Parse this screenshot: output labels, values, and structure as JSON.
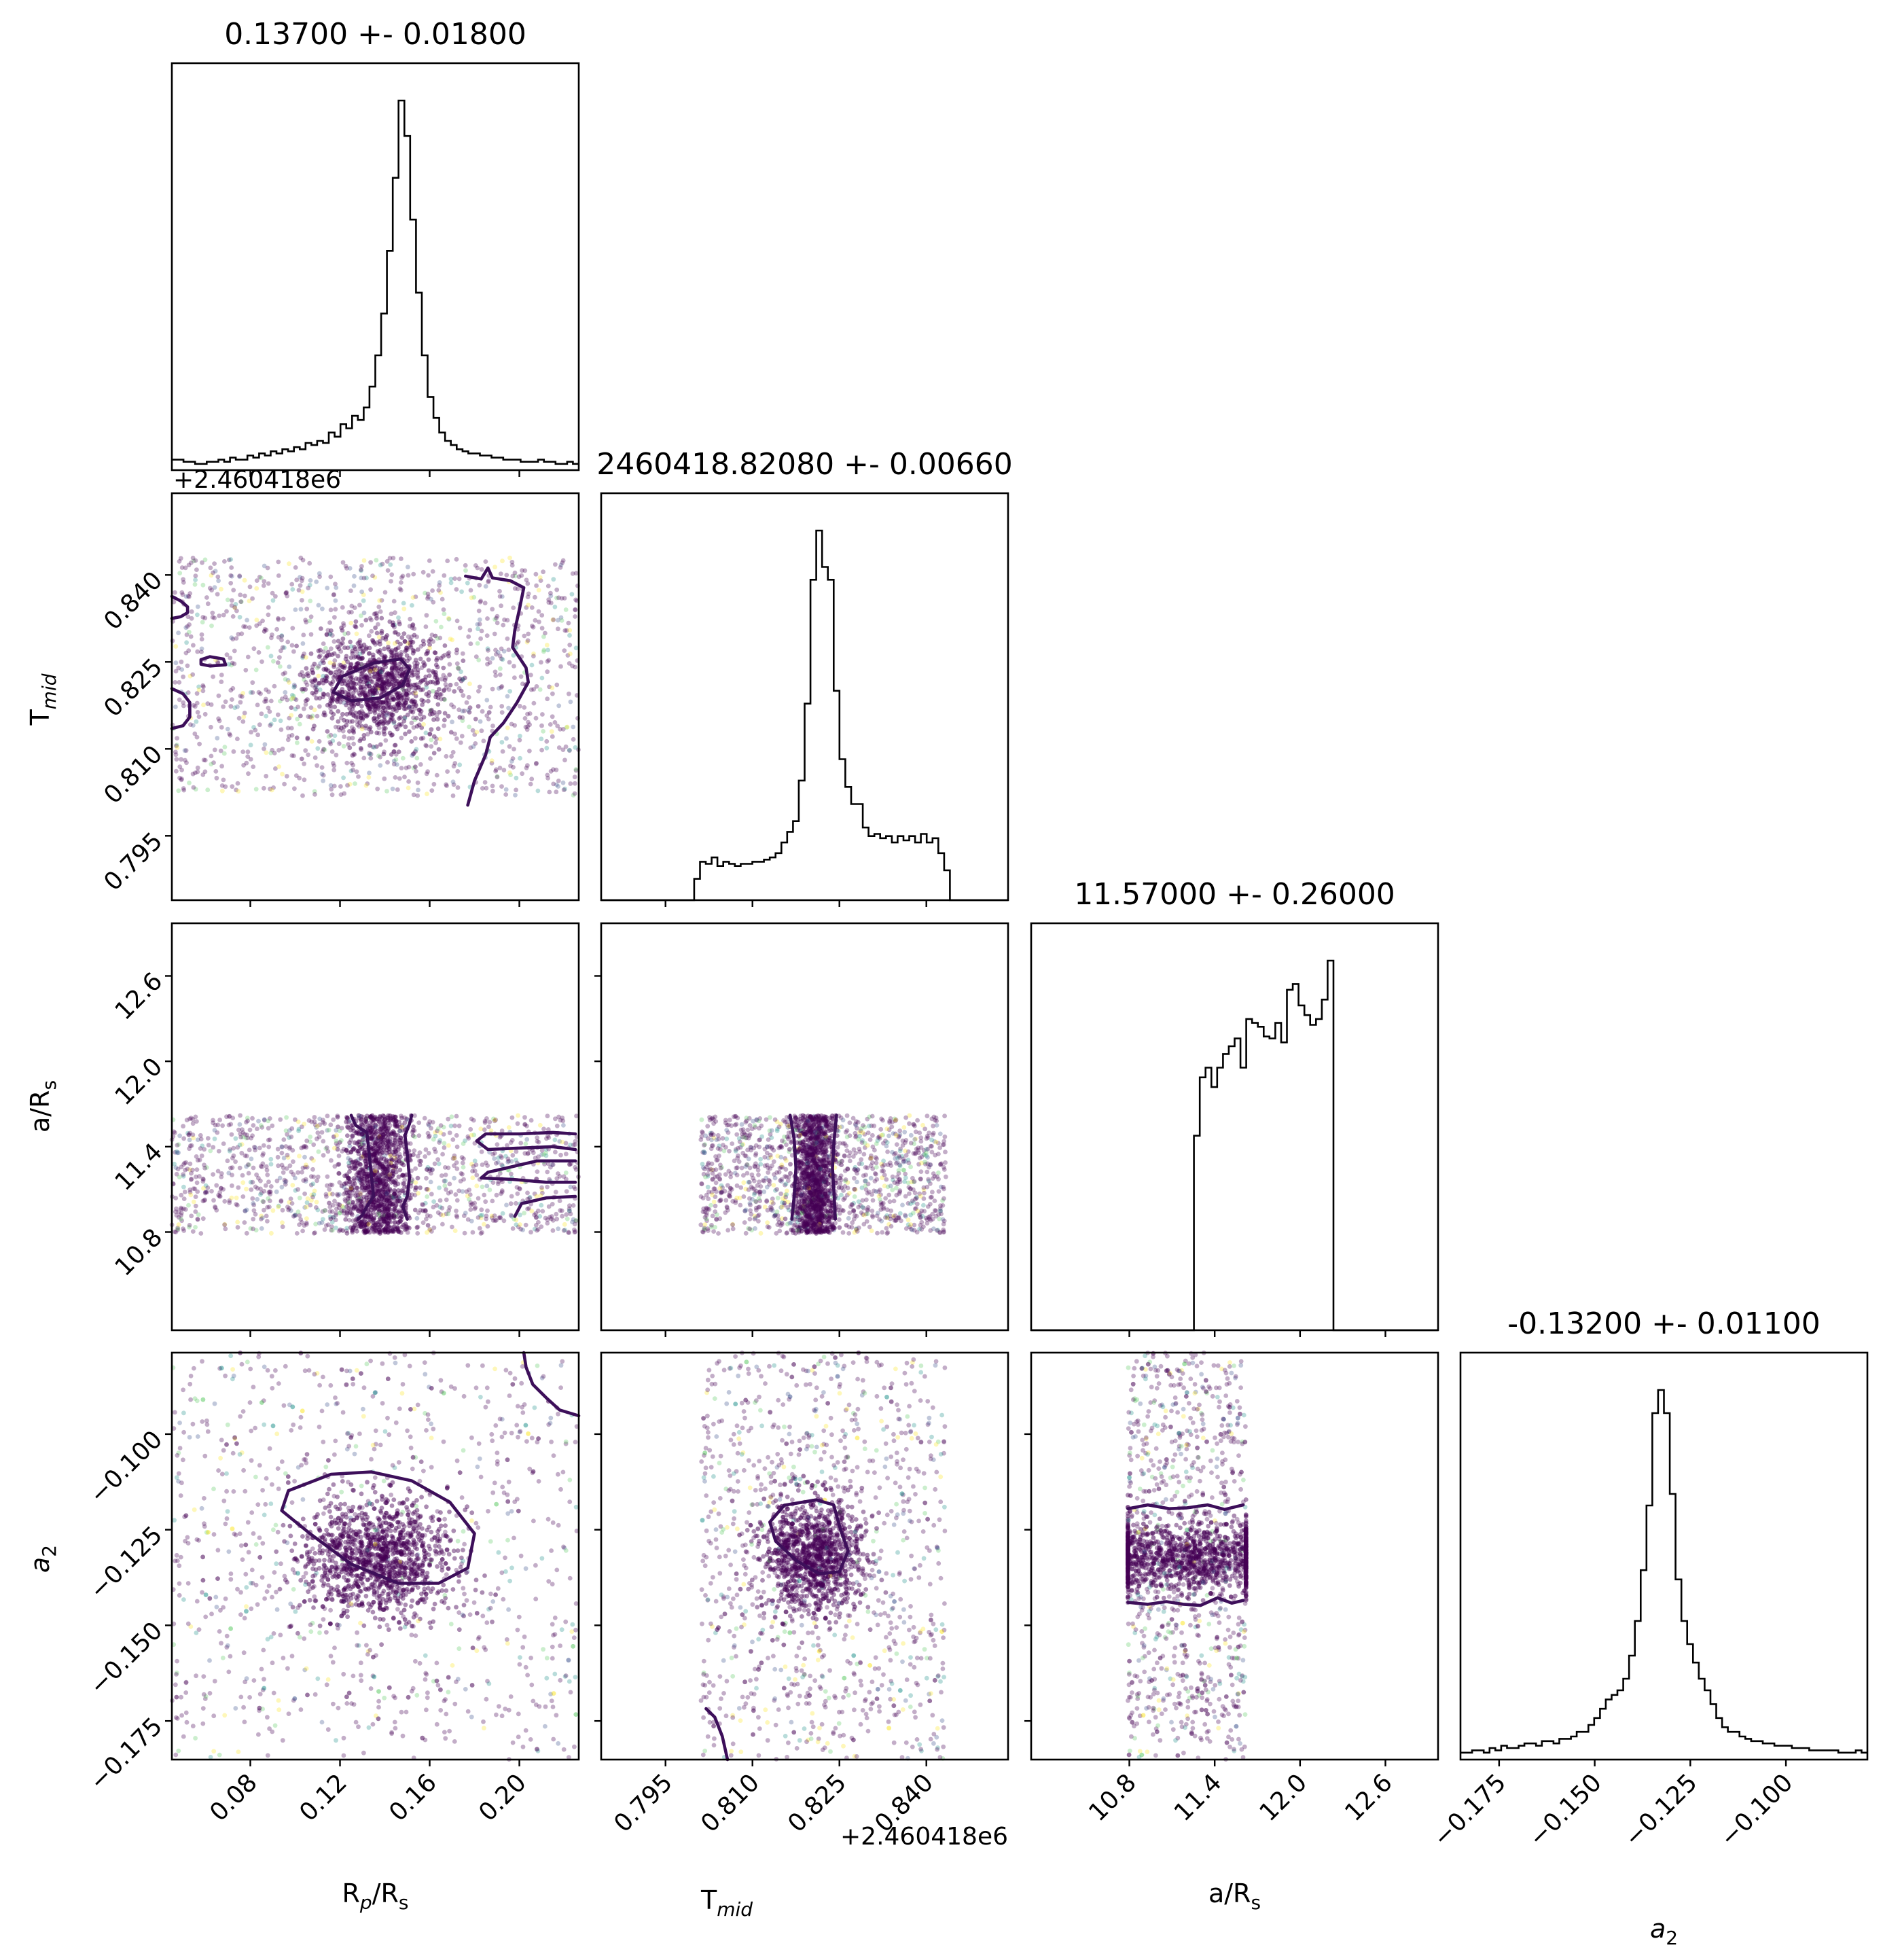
{
  "chart_data": {
    "type": "corner",
    "parameters": [
      {
        "key": "rp",
        "label": "R",
        "label_sub": "p",
        "label_suffix": "/R",
        "label_suffix_sub": "s",
        "range": [
          0.045,
          0.2265
        ],
        "ticks": [
          "0.08",
          "0.12",
          "0.16",
          "0.20"
        ],
        "tick_values": [
          0.08,
          0.12,
          0.16,
          0.2
        ],
        "offset": ""
      },
      {
        "key": "tmid",
        "label": "T",
        "label_sub": "mid",
        "label_suffix": "",
        "label_suffix_sub": "",
        "range": [
          0.7839,
          0.8541
        ],
        "ticks": [
          "0.795",
          "0.810",
          "0.825",
          "0.840"
        ],
        "tick_values": [
          0.795,
          0.81,
          0.825,
          0.84
        ],
        "offset": "+2.460418e6"
      },
      {
        "key": "ars",
        "label": "a/R",
        "label_sub": "s",
        "label_suffix": "",
        "label_suffix_sub": "",
        "range": [
          10.11,
          12.97
        ],
        "ticks": [
          "10.8",
          "11.4",
          "12.0",
          "12.6"
        ],
        "tick_values": [
          10.8,
          11.4,
          12.0,
          12.6
        ],
        "offset": ""
      },
      {
        "key": "a2",
        "label": "a",
        "label_sub": "2",
        "label_suffix": "",
        "label_suffix_sub": "",
        "italic": true,
        "range": [
          -0.1851,
          -0.0787
        ],
        "ticks": [
          "−0.175",
          "−0.150",
          "−0.125",
          "−0.100"
        ],
        "tick_values": [
          -0.175,
          -0.15,
          -0.125,
          -0.1
        ],
        "offset": ""
      }
    ],
    "titles": [
      "0.13700 +- 0.01800",
      "2460418.82080 +- 0.00660",
      "11.57000 +- 0.26000",
      "-0.13200 +- 0.01100"
    ],
    "histograms": [
      {
        "param": "rp",
        "edges_range": [
          0.045,
          0.2265
        ],
        "bins": 70,
        "counts": [
          5,
          5,
          4,
          4,
          3,
          3,
          4,
          4,
          5,
          4,
          6,
          5,
          5,
          7,
          6,
          8,
          7,
          9,
          8,
          10,
          9,
          11,
          10,
          13,
          12,
          14,
          13,
          18,
          16,
          22,
          20,
          26,
          24,
          30,
          40,
          55,
          75,
          105,
          140,
          177,
          160,
          120,
          85,
          55,
          35,
          25,
          18,
          14,
          12,
          10,
          9,
          8,
          8,
          7,
          7,
          6,
          6,
          5,
          5,
          5,
          4,
          4,
          4,
          5,
          4,
          4,
          3,
          3,
          4,
          3
        ]
      },
      {
        "param": "tmid",
        "edges_range": [
          0.7839,
          0.8541
        ],
        "bins": 70,
        "counts": [
          0,
          0,
          0,
          0,
          0,
          0,
          0,
          0,
          0,
          0,
          0,
          0,
          0,
          0,
          0,
          0,
          10,
          18,
          17,
          20,
          16,
          18,
          17,
          16,
          17,
          17,
          18,
          18,
          19,
          20,
          22,
          27,
          32,
          37,
          56,
          92,
          150,
          173,
          156,
          150,
          98,
          66,
          53,
          45,
          45,
          34,
          30,
          31,
          29,
          30,
          27,
          30,
          28,
          30,
          27,
          31,
          27,
          29,
          22,
          14,
          0,
          0,
          0,
          0,
          0,
          0,
          0,
          0,
          0,
          0
        ]
      },
      {
        "param": "ars",
        "edges_range": [
          10.11,
          12.97
        ],
        "bins": 70,
        "counts": [
          0,
          0,
          0,
          0,
          0,
          0,
          0,
          0,
          0,
          0,
          0,
          0,
          0,
          0,
          0,
          0,
          0,
          0,
          0,
          0,
          0,
          0,
          0,
          0,
          0,
          0,
          0,
          0,
          100,
          130,
          135,
          125,
          135,
          142,
          146,
          150,
          135,
          160,
          158,
          156,
          151,
          150,
          158,
          148,
          175,
          178,
          167,
          162,
          157,
          160,
          170,
          190,
          0,
          0,
          0,
          0,
          0,
          0,
          0,
          0,
          0,
          0,
          0,
          0,
          0,
          0,
          0,
          0,
          0,
          0
        ]
      },
      {
        "param": "a2",
        "edges_range": [
          -0.1851,
          -0.0787
        ],
        "bins": 70,
        "counts": [
          3,
          3,
          4,
          4,
          3,
          5,
          4,
          6,
          5,
          5,
          6,
          7,
          7,
          6,
          8,
          8,
          7,
          9,
          9,
          10,
          12,
          12,
          15,
          18,
          22,
          26,
          28,
          30,
          35,
          45,
          60,
          82,
          110,
          150,
          160,
          150,
          115,
          78,
          60,
          50,
          42,
          35,
          30,
          24,
          18,
          14,
          12,
          12,
          10,
          9,
          8,
          8,
          7,
          7,
          6,
          6,
          6,
          5,
          5,
          5,
          4,
          4,
          4,
          4,
          4,
          3,
          3,
          3,
          4,
          3
        ]
      }
    ],
    "point_clouds": [
      {
        "x": "rp",
        "y": "tmid",
        "x_span": [
          0.045,
          0.2265
        ],
        "y_span": [
          0.8019,
          0.843
        ],
        "x_center": 0.137,
        "x_sigma": 0.015,
        "y_center": 0.8208,
        "y_sigma": 0.0045,
        "core_fraction": 0.4
      },
      {
        "x": "rp",
        "y": "ars",
        "x_span": [
          0.045,
          0.2265
        ],
        "y_span": [
          10.79,
          11.62
        ],
        "x_center": 0.137,
        "x_sigma": 0.007,
        "core_fraction": 0.45
      },
      {
        "x": "tmid",
        "y": "ars",
        "x_span": [
          0.8011,
          0.8434
        ],
        "y_span": [
          10.79,
          11.62
        ],
        "x_center": 0.8208,
        "x_sigma": 0.0017,
        "core_fraction": 0.45
      },
      {
        "x": "rp",
        "y": "a2",
        "x_span": [
          0.045,
          0.2265
        ],
        "y_span": [
          -0.1851,
          -0.0787
        ],
        "x_center": 0.137,
        "x_sigma": 0.016,
        "y_center": -0.132,
        "y_sigma": 0.0075,
        "core_fraction": 0.55
      },
      {
        "x": "tmid",
        "y": "a2",
        "x_span": [
          0.8011,
          0.8434
        ],
        "y_span": [
          -0.1851,
          -0.0787
        ],
        "x_center": 0.8208,
        "x_sigma": 0.0042,
        "y_center": -0.132,
        "y_sigma": 0.0075,
        "core_fraction": 0.5
      },
      {
        "x": "ars",
        "y": "a2",
        "x_span": [
          10.79,
          11.62
        ],
        "y_span": [
          -0.1851,
          -0.0787
        ],
        "x_center": 11.2,
        "x_sigma": 0.4,
        "y_center": -0.132,
        "y_sigma": 0.0045,
        "core_fraction": 0.55
      }
    ],
    "contours": [
      {
        "x": "rp",
        "y": "tmid",
        "paths": [
          [
            [
              0.045,
              0.8363
            ],
            [
              0.049,
              0.8355
            ],
            [
              0.052,
              0.8345
            ],
            [
              0.052,
              0.8335
            ],
            [
              0.049,
              0.8328
            ],
            [
              0.045,
              0.8325
            ]
          ],
          [
            [
              0.058,
              0.8246
            ],
            [
              0.062,
              0.8243
            ],
            [
              0.069,
              0.8245
            ],
            [
              0.068,
              0.8255
            ],
            [
              0.062,
              0.8259
            ],
            [
              0.058,
              0.8254
            ],
            [
              0.058,
              0.8246
            ]
          ],
          [
            [
              0.045,
              0.8204
            ],
            [
              0.05,
              0.8195
            ],
            [
              0.053,
              0.818
            ],
            [
              0.053,
              0.8155
            ],
            [
              0.05,
              0.814
            ],
            [
              0.045,
              0.8135
            ]
          ],
          [
            [
              0.117,
              0.8198
            ],
            [
              0.121,
              0.8225
            ],
            [
              0.135,
              0.8248
            ],
            [
              0.147,
              0.8255
            ],
            [
              0.151,
              0.8238
            ],
            [
              0.148,
              0.821
            ],
            [
              0.138,
              0.8188
            ],
            [
              0.125,
              0.8183
            ],
            [
              0.117,
              0.8198
            ]
          ],
          [
            [
              0.176,
              0.8398
            ],
            [
              0.183,
              0.8393
            ],
            [
              0.186,
              0.8412
            ]
          ],
          [
            [
              0.186,
              0.8412
            ],
            [
              0.188,
              0.8395
            ],
            [
              0.196,
              0.839
            ],
            [
              0.202,
              0.8378
            ],
            [
              0.2,
              0.834
            ],
            [
              0.198,
              0.8305
            ],
            [
              0.197,
              0.8275
            ],
            [
              0.203,
              0.824
            ],
            [
              0.204,
              0.8215
            ],
            [
              0.199,
              0.818
            ],
            [
              0.193,
              0.8145
            ],
            [
              0.187,
              0.812
            ],
            [
              0.185,
              0.809
            ],
            [
              0.18,
              0.8045
            ],
            [
              0.177,
              0.8003
            ]
          ]
        ]
      },
      {
        "x": "rp",
        "y": "ars",
        "paths": [
          [
            [
              0.125,
              11.62
            ],
            [
              0.127,
              11.55
            ],
            [
              0.132,
              11.5
            ],
            [
              0.133,
              11.35
            ],
            [
              0.134,
              11.2
            ],
            [
              0.135,
              11.05
            ],
            [
              0.132,
              10.98
            ],
            [
              0.13,
              10.92
            ],
            [
              0.128,
              10.89
            ]
          ],
          [
            [
              0.152,
              11.62
            ],
            [
              0.151,
              11.56
            ],
            [
              0.149,
              11.48
            ],
            [
              0.15,
              11.35
            ],
            [
              0.151,
              11.18
            ],
            [
              0.15,
              11.05
            ],
            [
              0.148,
              10.98
            ],
            [
              0.15,
              10.89
            ]
          ],
          [
            [
              0.225,
              11.49
            ],
            [
              0.215,
              11.5
            ],
            [
              0.2,
              11.49
            ],
            [
              0.185,
              11.49
            ],
            [
              0.181,
              11.44
            ],
            [
              0.186,
              11.38
            ],
            [
              0.2,
              11.39
            ],
            [
              0.215,
              11.4
            ],
            [
              0.225,
              11.38
            ]
          ],
          [
            [
              0.225,
              11.3
            ],
            [
              0.208,
              11.3
            ],
            [
              0.197,
              11.26
            ],
            [
              0.186,
              11.22
            ],
            [
              0.183,
              11.18
            ],
            [
              0.197,
              11.17
            ],
            [
              0.212,
              11.15
            ],
            [
              0.225,
              11.15
            ]
          ],
          [
            [
              0.225,
              11.05
            ],
            [
              0.212,
              11.04
            ],
            [
              0.201,
              11.0
            ],
            [
              0.198,
              10.91
            ]
          ]
        ]
      },
      {
        "x": "tmid",
        "y": "ars",
        "paths": [
          [
            [
              0.8165,
              11.62
            ],
            [
              0.8172,
              11.45
            ],
            [
              0.8175,
              11.25
            ],
            [
              0.8172,
              11.05
            ],
            [
              0.8168,
              10.89
            ]
          ],
          [
            [
              0.8245,
              11.62
            ],
            [
              0.8241,
              11.45
            ],
            [
              0.8238,
              11.25
            ],
            [
              0.8241,
              11.05
            ],
            [
              0.8243,
              10.89
            ]
          ]
        ]
      },
      {
        "x": "rp",
        "y": "a2",
        "paths": [
          [
            [
              0.116,
              -0.1105
            ],
            [
              0.134,
              -0.1099
            ],
            [
              0.152,
              -0.1122
            ],
            [
              0.169,
              -0.1178
            ],
            [
              0.18,
              -0.126
            ],
            [
              0.177,
              -0.135
            ],
            [
              0.164,
              -0.139
            ],
            [
              0.146,
              -0.139
            ],
            [
              0.125,
              -0.134
            ],
            [
              0.107,
              -0.1262
            ],
            [
              0.094,
              -0.12
            ],
            [
              0.097,
              -0.1148
            ],
            [
              0.116,
              -0.1105
            ]
          ]
        ]
      },
      {
        "x": "rp",
        "y": "a2",
        "paths": [
          [
            [
              0.2265,
              -0.0952
            ],
            [
              0.218,
              -0.0937
            ],
            [
              0.212,
              -0.0905
            ],
            [
              0.206,
              -0.087
            ],
            [
              0.203,
              -0.0825
            ],
            [
              0.202,
              -0.0787
            ]
          ]
        ]
      },
      {
        "x": "tmid",
        "y": "a2",
        "paths": [
          [
            [
              0.8155,
              -0.1186
            ],
            [
              0.821,
              -0.1172
            ],
            [
              0.824,
              -0.1185
            ],
            [
              0.8252,
              -0.125
            ],
            [
              0.8265,
              -0.1305
            ],
            [
              0.825,
              -0.136
            ],
            [
              0.8215,
              -0.1365
            ],
            [
              0.8175,
              -0.133
            ],
            [
              0.814,
              -0.128
            ],
            [
              0.813,
              -0.123
            ],
            [
              0.8155,
              -0.1186
            ]
          ]
        ]
      },
      {
        "x": "tmid",
        "y": "a2",
        "paths": [
          [
            [
              0.802,
              -0.1718
            ],
            [
              0.8035,
              -0.174
            ],
            [
              0.8048,
              -0.179
            ],
            [
              0.8057,
              -0.1851
            ]
          ]
        ]
      },
      {
        "x": "ars",
        "y": "a2",
        "paths": [
          [
            [
              10.79,
              -0.1195
            ],
            [
              10.93,
              -0.1185
            ],
            [
              11.08,
              -0.1195
            ],
            [
              11.2,
              -0.1193
            ],
            [
              11.35,
              -0.1185
            ],
            [
              11.47,
              -0.1197
            ],
            [
              11.6,
              -0.1185
            ]
          ],
          [
            [
              10.79,
              -0.144
            ],
            [
              10.93,
              -0.1445
            ],
            [
              11.06,
              -0.1438
            ],
            [
              11.18,
              -0.1445
            ],
            [
              11.3,
              -0.1448
            ],
            [
              11.42,
              -0.1428
            ],
            [
              11.52,
              -0.1442
            ],
            [
              11.6,
              -0.1435
            ]
          ]
        ]
      }
    ],
    "point_colors": [
      "#440154",
      "#3b528b",
      "#21918c",
      "#5ec962",
      "#fde725"
    ],
    "contour_color": "#3d0f5a"
  }
}
